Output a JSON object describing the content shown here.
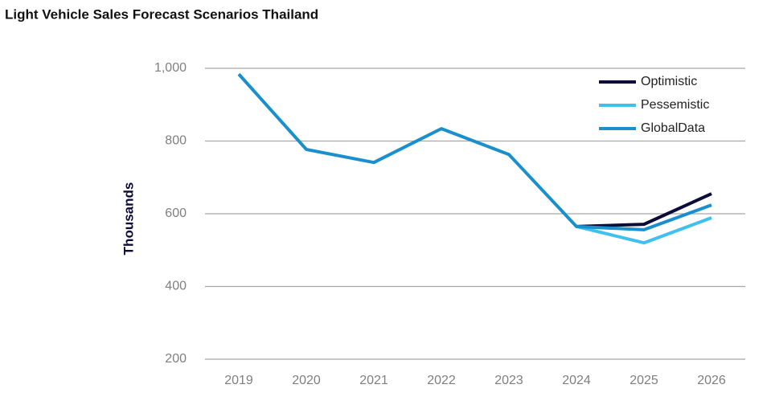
{
  "chart_data": {
    "type": "line",
    "title": "Light Vehicle Sales Forecast Scenarios Thailand",
    "y_label": "Thousands",
    "categories": [
      "2019",
      "2020",
      "2021",
      "2022",
      "2023",
      "2024",
      "2025",
      "2026"
    ],
    "series": [
      {
        "name": "Optimistic",
        "color": "#0b0c3a",
        "values": [
          null,
          null,
          null,
          null,
          null,
          565,
          571,
          655
        ]
      },
      {
        "name": "Pessemistic",
        "color": "#3fc0f0",
        "values": [
          null,
          null,
          null,
          null,
          null,
          565,
          520,
          589
        ]
      },
      {
        "name": "GlobalData",
        "color": "#1a8fcd",
        "values": [
          984,
          777,
          741,
          834,
          763,
          565,
          556,
          624
        ]
      }
    ],
    "ylim": [
      200,
      1000
    ],
    "yticks": [
      200,
      400,
      600,
      800,
      {
        "value": 1000,
        "label": "1,000"
      }
    ],
    "grid": true,
    "legend": "top-right"
  }
}
